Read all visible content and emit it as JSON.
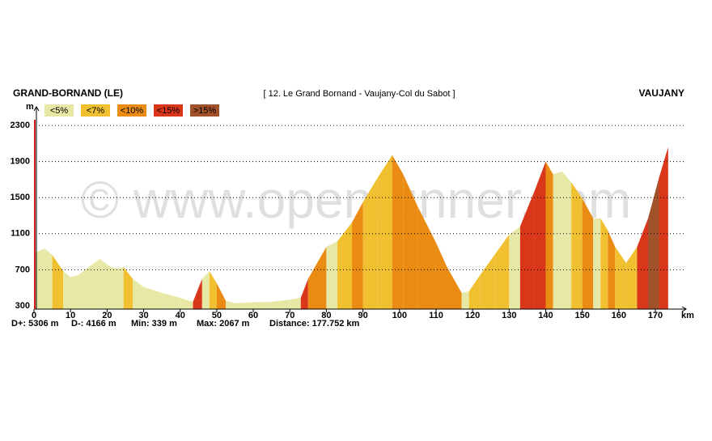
{
  "chart_data": {
    "type": "elevation-profile",
    "start_name": "GRAND-BORNAND (LE)",
    "title": "[ 12. Le Grand Bornand - Vaujany-Col du Sabot ]",
    "end_name": "VAUJANY",
    "y_label": "m",
    "x_label": "km",
    "watermark": "© www.openrunner.com",
    "legend": [
      {
        "value": 5,
        "label": "<5%",
        "color": "#e8e8a6"
      },
      {
        "value": 7,
        "label": "<7%",
        "color": "#f0c030"
      },
      {
        "value": 10,
        "label": "<10%",
        "color": "#ea8c14"
      },
      {
        "value": 15,
        "label": "<15%",
        "color": "#d9361a"
      },
      {
        "value": 15,
        "label": ">15%",
        "color": "#a2522a"
      }
    ],
    "x": [
      0,
      2.9,
      5,
      8,
      10,
      12,
      15,
      18,
      21,
      23,
      24.5,
      27,
      30,
      35,
      40,
      43.5,
      46,
      48,
      50,
      52.5,
      55,
      60,
      65,
      70,
      73,
      75,
      80,
      83,
      87,
      90,
      94,
      98,
      101,
      105,
      110,
      113,
      117,
      119,
      122,
      126,
      130,
      133,
      137,
      140,
      142,
      144.5,
      147,
      150,
      153,
      155,
      157,
      159,
      162,
      165,
      168,
      171,
      173.5
    ],
    "series": [
      {
        "name": "elevation",
        "values": [
          883,
          937,
          865,
          685,
          620,
          640,
          730,
          820,
          730,
          710,
          730,
          600,
          510,
          445,
          390,
          345,
          600,
          685,
          550,
          355,
          330,
          340,
          345,
          370,
          390,
          600,
          955,
          1015,
          1225,
          1450,
          1720,
          1970,
          1760,
          1400,
          1000,
          730,
          445,
          460,
          640,
          865,
          1090,
          1180,
          1580,
          1900,
          1760,
          1790,
          1670,
          1490,
          1270,
          1270,
          1135,
          955,
          775,
          955,
          1270,
          1720,
          2060
        ]
      }
    ],
    "xlim": [
      0,
      170
    ],
    "ylim": [
      300,
      2300
    ],
    "xticks": [
      0,
      10,
      20,
      30,
      40,
      50,
      60,
      70,
      80,
      90,
      100,
      110,
      120,
      130,
      140,
      150,
      160,
      170
    ],
    "yticks": [
      300,
      700,
      1100,
      1500,
      1900,
      2300
    ],
    "grid": true,
    "stats": [
      "D+: 5306 m",
      "D-: 4166 m",
      "Min: 339 m",
      "Max: 2067 m",
      "Distance: 177.752 km"
    ]
  }
}
